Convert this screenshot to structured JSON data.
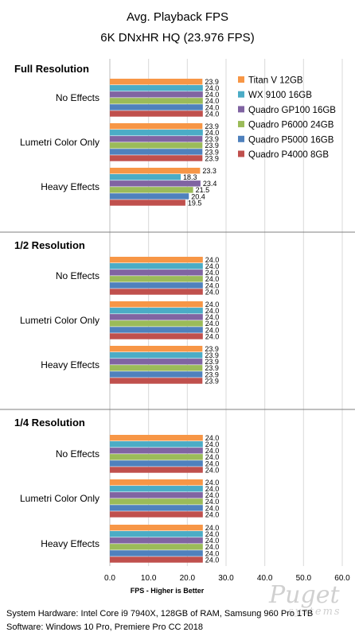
{
  "chart_data": {
    "type": "bar",
    "orientation": "horizontal",
    "title": "Avg. Playback FPS",
    "subtitle": "6K DNxHR HQ (23.976 FPS)",
    "xlabel": "FPS - Higher is Better",
    "xlim": [
      0,
      60
    ],
    "xticks": [
      "0.0",
      "10.0",
      "20.0",
      "30.0",
      "40.0",
      "50.0",
      "60.0"
    ],
    "grid": true,
    "legend_position": "right",
    "series": [
      {
        "name": "Titan V 12GB",
        "color": "#f79646"
      },
      {
        "name": "WX 9100 16GB",
        "color": "#4bacc6"
      },
      {
        "name": "Quadro GP100 16GB",
        "color": "#8064a2"
      },
      {
        "name": "Quadro P6000 24GB",
        "color": "#9bbb59"
      },
      {
        "name": "Quadro P5000 16GB",
        "color": "#4f81bd"
      },
      {
        "name": "Quadro P4000 8GB",
        "color": "#c0504d"
      }
    ],
    "sections": [
      {
        "title": "Full Resolution",
        "groups": [
          {
            "label": "No Effects",
            "values": [
              23.9,
              24.0,
              24.0,
              24.0,
              24.0,
              24.0
            ],
            "labels": [
              "23.9",
              "24.0",
              "24.0",
              "24.0",
              "24.0",
              "24.0"
            ]
          },
          {
            "label": "Lumetri Color Only",
            "values": [
              23.9,
              24.0,
              23.9,
              23.9,
              23.9,
              23.9
            ],
            "labels": [
              "23.9",
              "24.0",
              "23.9",
              "23.9",
              "23.9",
              "23.9"
            ]
          },
          {
            "label": "Heavy Effects",
            "values": [
              23.3,
              18.3,
              23.4,
              21.5,
              20.4,
              19.5
            ],
            "labels": [
              "23.3",
              "18.3",
              "23.4",
              "21.5",
              "20.4",
              "19.5"
            ]
          }
        ]
      },
      {
        "title": "1/2 Resolution",
        "groups": [
          {
            "label": "No Effects",
            "values": [
              24.0,
              24.0,
              24.0,
              24.0,
              24.0,
              24.0
            ],
            "labels": [
              "24.0",
              "24.0",
              "24.0",
              "24.0",
              "24.0",
              "24.0"
            ]
          },
          {
            "label": "Lumetri Color Only",
            "values": [
              24.0,
              24.0,
              24.0,
              24.0,
              24.0,
              24.0
            ],
            "labels": [
              "24.0",
              "24.0",
              "24.0",
              "24.0",
              "24.0",
              "24.0"
            ]
          },
          {
            "label": "Heavy Effects",
            "values": [
              23.9,
              23.9,
              23.9,
              23.9,
              23.9,
              23.9
            ],
            "labels": [
              "23.9",
              "23.9",
              "23.9",
              "23.9",
              "23.9",
              "23.9"
            ]
          }
        ]
      },
      {
        "title": "1/4 Resolution",
        "groups": [
          {
            "label": "No Effects",
            "values": [
              24.0,
              24.0,
              24.0,
              24.0,
              24.0,
              24.0
            ],
            "labels": [
              "24.0",
              "24.0",
              "24.0",
              "24.0",
              "24.0",
              "24.0"
            ]
          },
          {
            "label": "Lumetri Color Only",
            "values": [
              24.0,
              24.0,
              24.0,
              24.0,
              24.0,
              24.0
            ],
            "labels": [
              "24.0",
              "24.0",
              "24.0",
              "24.0",
              "24.0",
              "24.0"
            ]
          },
          {
            "label": "Heavy Effects",
            "values": [
              24.0,
              24.0,
              24.0,
              24.0,
              24.0,
              24.0
            ],
            "labels": [
              "24.0",
              "24.0",
              "24.0",
              "24.0",
              "24.0",
              "24.0"
            ]
          }
        ]
      }
    ]
  },
  "footer": {
    "line1": "System Hardware: Intel Core i9 7940X,  128GB of RAM, Samsung 960 Pro 1TB",
    "line2": "Software: Windows 10 Pro, Premiere Pro CC 2018"
  },
  "watermark": {
    "name": "Puget",
    "sub": "systems"
  }
}
